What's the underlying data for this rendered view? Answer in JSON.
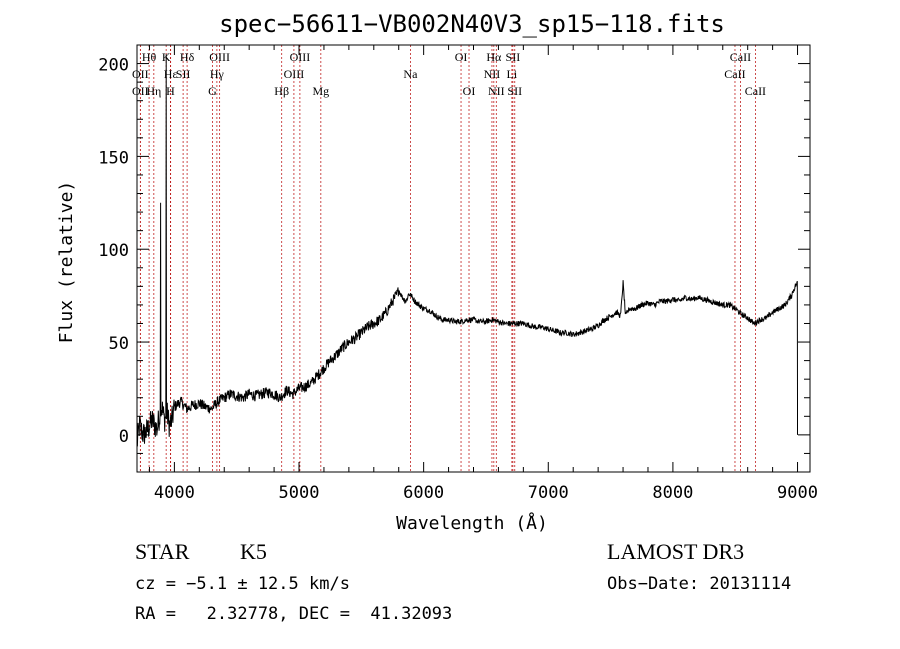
{
  "chart_data": {
    "type": "line",
    "title": "spec−56611−VB002N40V3_sp15−118.fits",
    "xlabel": "Wavelength (Å)",
    "ylabel": "Flux (relative)",
    "xlim": [
      3700,
      9100
    ],
    "ylim": [
      -20,
      210
    ],
    "xticks": [
      4000,
      5000,
      6000,
      7000,
      8000,
      9000
    ],
    "yticks": [
      0,
      50,
      100,
      150,
      200
    ],
    "spectrum_anchors": {
      "wavelength": [
        3700,
        3720,
        3750,
        3780,
        3820,
        3860,
        3880,
        3900,
        3920,
        3940,
        3960,
        3980,
        4000,
        4050,
        4100,
        4150,
        4200,
        4250,
        4300,
        4350,
        4400,
        4450,
        4500,
        4550,
        4600,
        4650,
        4700,
        4750,
        4800,
        4850,
        4900,
        4950,
        5000,
        5050,
        5100,
        5150,
        5200,
        5250,
        5300,
        5350,
        5400,
        5450,
        5500,
        5550,
        5600,
        5650,
        5700,
        5750,
        5780,
        5800,
        5830,
        5860,
        5880,
        5900,
        5930,
        5960,
        6000,
        6050,
        6100,
        6150,
        6200,
        6250,
        6300,
        6350,
        6400,
        6450,
        6500,
        6550,
        6600,
        6650,
        6700,
        6750,
        6800,
        6850,
        6900,
        6950,
        7000,
        7050,
        7100,
        7150,
        7200,
        7250,
        7300,
        7350,
        7400,
        7450,
        7500,
        7550,
        7580,
        7600,
        7620,
        7650,
        7700,
        7750,
        7800,
        7850,
        7900,
        7950,
        8000,
        8050,
        8100,
        8150,
        8200,
        8250,
        8300,
        8350,
        8400,
        8450,
        8500,
        8550,
        8600,
        8650,
        8700,
        8750,
        8800,
        8850,
        8900,
        8950,
        8980,
        9000
      ],
      "flux": [
        -5,
        5,
        0,
        2,
        8,
        3,
        10,
        15,
        8,
        12,
        5,
        8,
        15,
        18,
        14,
        16,
        17,
        15,
        14,
        18,
        20,
        22,
        21,
        20,
        22,
        21,
        22,
        23,
        22,
        20,
        24,
        22,
        25,
        26,
        28,
        32,
        36,
        40,
        43,
        47,
        50,
        52,
        55,
        58,
        60,
        62,
        66,
        72,
        75,
        78,
        74,
        72,
        76,
        75,
        72,
        70,
        68,
        67,
        64,
        62,
        62,
        61,
        61,
        62,
        62,
        61,
        61,
        62,
        61,
        60,
        60,
        60,
        60,
        59,
        58,
        58,
        57,
        56,
        55,
        55,
        54,
        55,
        56,
        57,
        59,
        62,
        64,
        66,
        64,
        82,
        64,
        68,
        68,
        70,
        71,
        70,
        72,
        72,
        73,
        72,
        74,
        73,
        74,
        73,
        72,
        71,
        70,
        70,
        68,
        65,
        63,
        60,
        62,
        63,
        66,
        68,
        70,
        75,
        80,
        82
      ]
    },
    "lines": [
      {
        "label": "Hθ",
        "wavelength": 3797,
        "row": 1
      },
      {
        "label": "OII",
        "wavelength": 3727,
        "row": 2
      },
      {
        "label": "OII",
        "wavelength": 3727,
        "row": 3
      },
      {
        "label": "Hη",
        "wavelength": 3835,
        "row": 3
      },
      {
        "label": "K",
        "wavelength": 3934,
        "row": 1
      },
      {
        "label": "Hε",
        "wavelength": 3970,
        "row": 2
      },
      {
        "label": "H",
        "wavelength": 3968,
        "row": 3
      },
      {
        "label": "SII",
        "wavelength": 4070,
        "row": 2
      },
      {
        "label": "Hδ",
        "wavelength": 4102,
        "row": 1
      },
      {
        "label": "OIII",
        "wavelength": 4363,
        "row": 1
      },
      {
        "label": "Hγ",
        "wavelength": 4341,
        "row": 2
      },
      {
        "label": "G",
        "wavelength": 4305,
        "row": 3
      },
      {
        "label": "Hβ",
        "wavelength": 4861,
        "row": 3
      },
      {
        "label": "OIII",
        "wavelength": 5007,
        "row": 1
      },
      {
        "label": "OIII",
        "wavelength": 4959,
        "row": 2
      },
      {
        "label": "Mg",
        "wavelength": 5175,
        "row": 3
      },
      {
        "label": "Na",
        "wavelength": 5894,
        "row": 2
      },
      {
        "label": "OI",
        "wavelength": 6300,
        "row": 1
      },
      {
        "label": "OI",
        "wavelength": 6364,
        "row": 3
      },
      {
        "label": "Hα",
        "wavelength": 6563,
        "row": 1
      },
      {
        "label": "NII",
        "wavelength": 6548,
        "row": 2
      },
      {
        "label": "NII",
        "wavelength": 6583,
        "row": 3
      },
      {
        "label": "SII",
        "wavelength": 6716,
        "row": 1
      },
      {
        "label": "Li",
        "wavelength": 6708,
        "row": 2
      },
      {
        "label": "SII",
        "wavelength": 6731,
        "row": 3
      },
      {
        "label": "CaII",
        "wavelength": 8542,
        "row": 1
      },
      {
        "label": "CaII",
        "wavelength": 8498,
        "row": 2
      },
      {
        "label": "CaII",
        "wavelength": 8662,
        "row": 3
      }
    ]
  },
  "info": {
    "object_class": "STAR",
    "subclass": "K5",
    "survey": "LAMOST DR3",
    "cz": "cz = −5.1 ± 12.5 km/s",
    "obs_date": "Obs−Date: 20131114",
    "coords": "RA =   2.32778, DEC =  41.32093"
  },
  "colors": {
    "spectrum": "#000000",
    "line_marker": "#c02020",
    "axes": "#000000"
  }
}
